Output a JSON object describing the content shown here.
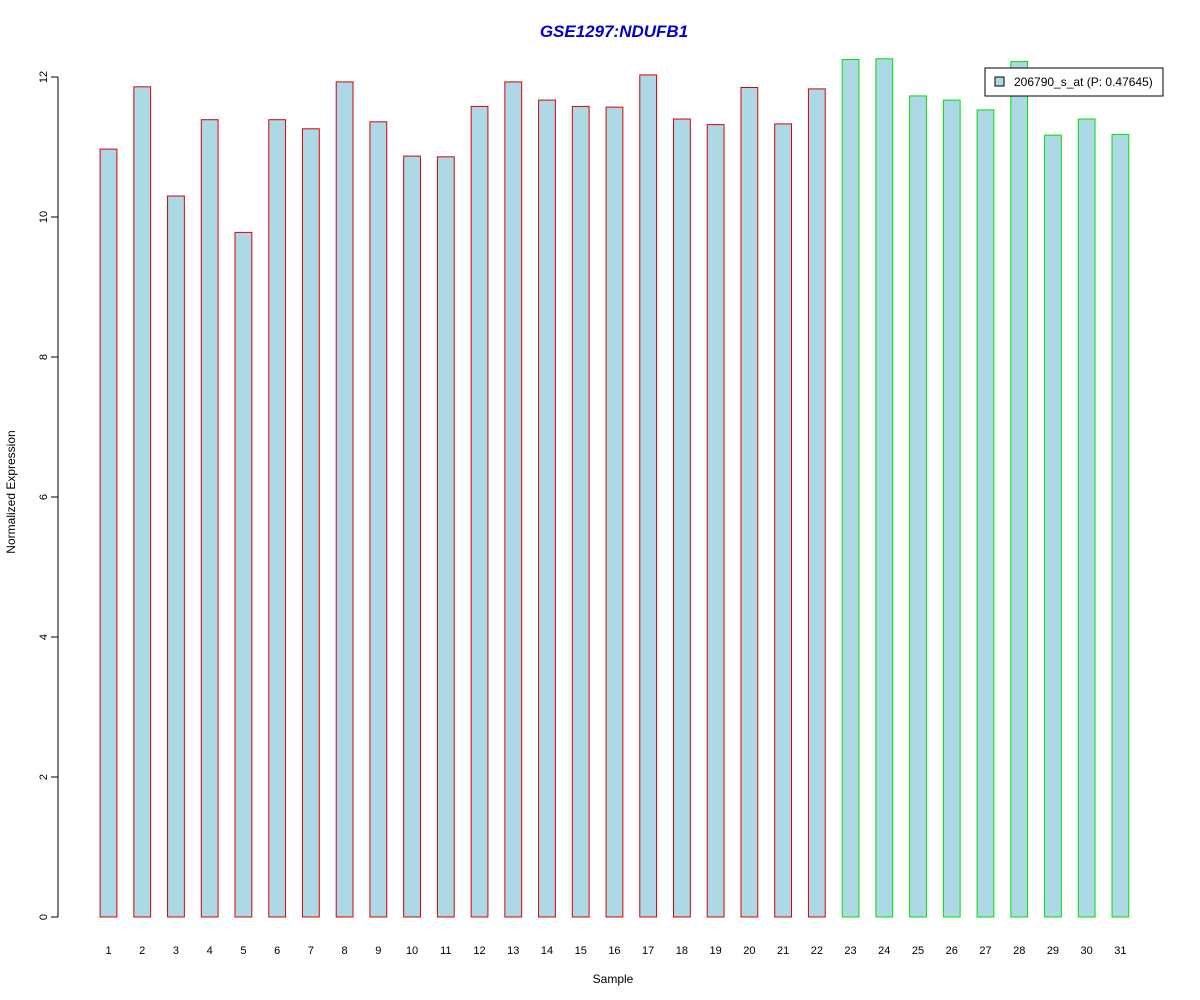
{
  "chart_data": {
    "type": "bar",
    "title": "GSE1297:NDUFB1",
    "xlabel": "Sample",
    "ylabel": "Normalized Expression",
    "ylim": [
      0,
      12
    ],
    "yticks": [
      0,
      2,
      4,
      6,
      8,
      10,
      12
    ],
    "categories": [
      "1",
      "2",
      "3",
      "4",
      "5",
      "6",
      "7",
      "8",
      "9",
      "10",
      "11",
      "12",
      "13",
      "14",
      "15",
      "16",
      "17",
      "18",
      "19",
      "20",
      "21",
      "22",
      "23",
      "24",
      "25",
      "26",
      "27",
      "28",
      "29",
      "30",
      "31"
    ],
    "values": [
      10.97,
      11.86,
      10.3,
      11.39,
      9.78,
      11.39,
      11.26,
      11.93,
      11.36,
      10.87,
      10.86,
      11.58,
      11.93,
      11.67,
      11.58,
      11.57,
      12.03,
      11.4,
      11.32,
      11.85,
      11.33,
      11.83,
      12.25,
      12.26,
      11.73,
      11.67,
      11.53,
      12.22,
      11.17,
      11.4,
      11.18
    ],
    "groups": [
      1,
      1,
      1,
      1,
      1,
      1,
      1,
      1,
      1,
      1,
      1,
      1,
      1,
      1,
      1,
      1,
      1,
      1,
      1,
      1,
      1,
      1,
      2,
      2,
      2,
      2,
      2,
      2,
      2,
      2,
      2
    ],
    "group_border_colors": {
      "1": "#dd0000",
      "2": "#00e000"
    },
    "fill_color": "#add8e6",
    "title_color": "#0000cc",
    "legend": {
      "position": "top-right",
      "entries": [
        {
          "label": "206790_s_at (P: 0.47645)",
          "color": "#add8e6"
        }
      ]
    },
    "grid": false
  }
}
